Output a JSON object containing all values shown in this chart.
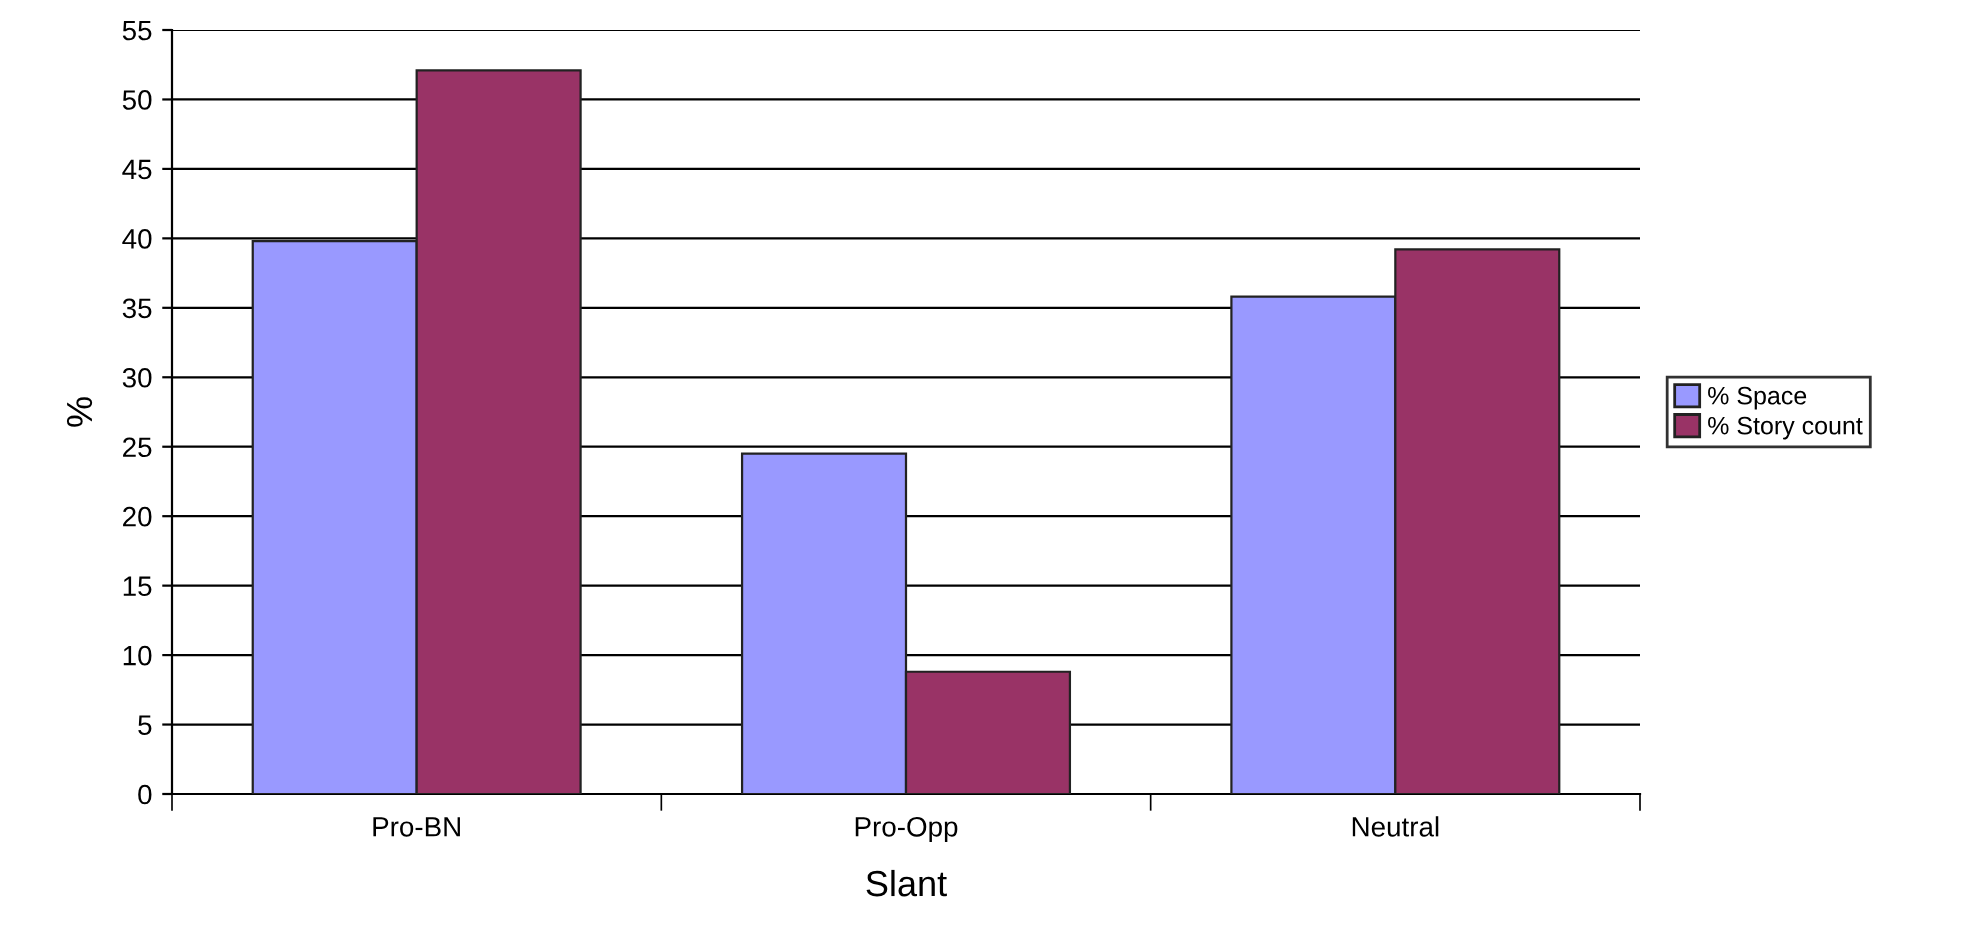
{
  "chart_data": {
    "type": "bar",
    "xlabel": "Slant",
    "ylabel": "%",
    "categories": [
      "Pro-BN",
      "Pro-Opp",
      "Neutral"
    ],
    "series": [
      {
        "name": "% Space",
        "color": "#9999ff",
        "values": [
          39.8,
          24.5,
          35.8
        ]
      },
      {
        "name": "% Story count",
        "color": "#993366",
        "values": [
          52.1,
          8.8,
          39.2
        ]
      }
    ],
    "ylim": [
      0,
      55
    ],
    "yticks": [
      0,
      5,
      10,
      15,
      20,
      25,
      30,
      35,
      40,
      45,
      50,
      55
    ],
    "grid": "y",
    "legend": "right"
  }
}
